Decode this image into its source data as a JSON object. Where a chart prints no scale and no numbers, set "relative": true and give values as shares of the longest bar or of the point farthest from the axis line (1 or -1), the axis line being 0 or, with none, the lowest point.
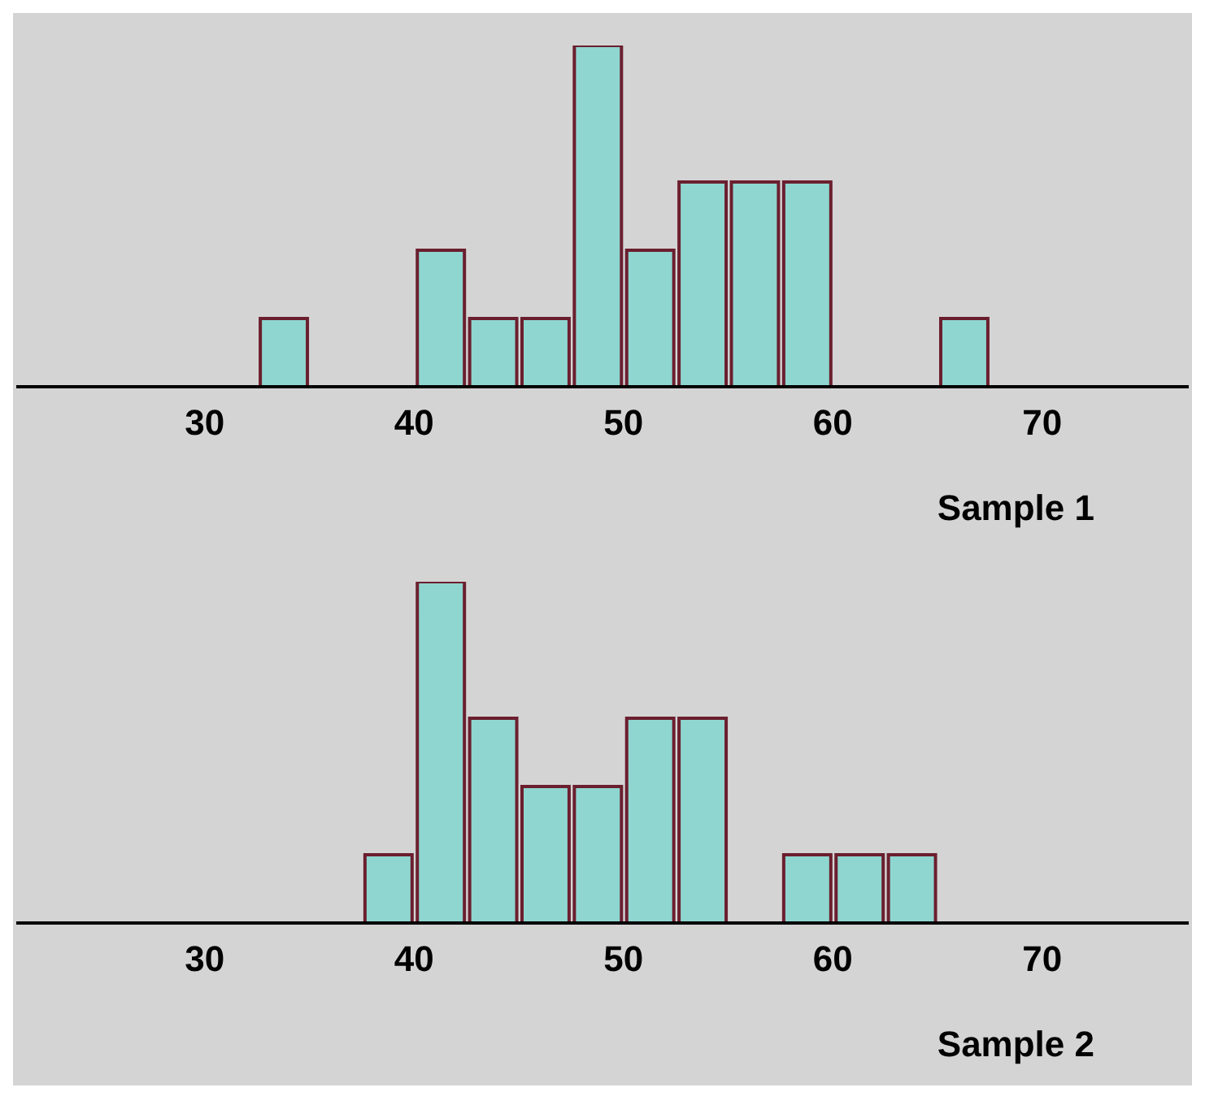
{
  "chart_data": [
    {
      "type": "bar",
      "relative": true,
      "xlabel": "Sample 1",
      "x": [
        33.75,
        36.25,
        38.75,
        41.25,
        43.75,
        46.25,
        48.75,
        51.25,
        53.75,
        56.25,
        58.75,
        61.25,
        63.75,
        66.25
      ],
      "values": [
        0.2,
        0,
        0,
        0.4,
        0.2,
        0.2,
        1,
        0.4,
        0.6,
        0.6,
        0.6,
        0,
        0,
        0.2
      ],
      "color": "#8fd6d0",
      "xlim": [
        21,
        77
      ],
      "xticks": [
        30,
        40,
        50,
        60,
        70
      ]
    },
    {
      "type": "bar",
      "relative": true,
      "xlabel": "Sample 2",
      "x": [
        38.75,
        41.25,
        43.75,
        46.25,
        48.75,
        51.25,
        53.75,
        56.25,
        58.75,
        61.25,
        63.75
      ],
      "values": [
        0.2,
        1,
        0.6,
        0.4,
        0.4,
        0.6,
        0.6,
        0,
        0.2,
        0.2,
        0.2
      ],
      "color": "#8fd6d0",
      "xlim": [
        21,
        77
      ],
      "xticks": [
        30,
        40,
        50,
        60,
        70
      ]
    }
  ]
}
